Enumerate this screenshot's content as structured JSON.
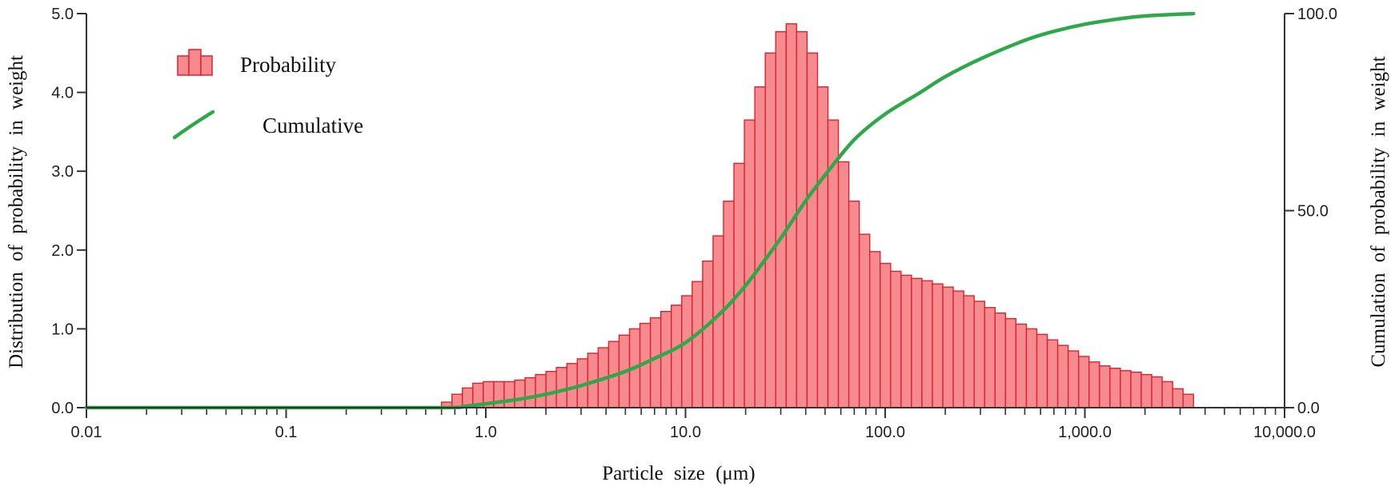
{
  "chart_data": {
    "type": "bar+line",
    "title": "",
    "xlabel": "Particle size (μm)",
    "ylabel_left": "Distribution of probability in weight",
    "ylabel_right": "Cumulation of probability in weight",
    "x_scale": "log10",
    "xlim": [
      0.01,
      10000
    ],
    "ylim_left": [
      0,
      5
    ],
    "ylim_right": [
      0,
      100
    ],
    "x_ticks": [
      0.01,
      0.1,
      1,
      10,
      100,
      1000,
      10000
    ],
    "x_tick_labels": [
      "0.01",
      "0.1",
      "1.0",
      "10.0",
      "100.0",
      "1,000.0",
      "10,000.0"
    ],
    "y_left_ticks": [
      0,
      1,
      2,
      3,
      4,
      5
    ],
    "y_left_tick_labels": [
      "0.0",
      "1.0",
      "2.0",
      "3.0",
      "4.0",
      "5.0"
    ],
    "y_right_ticks": [
      0,
      50,
      100
    ],
    "y_right_tick_labels": [
      "0.0",
      "50.0",
      "100.0"
    ],
    "legend": [
      {
        "name": "Probability",
        "kind": "bar"
      },
      {
        "name": "Cumulative",
        "kind": "line"
      }
    ],
    "legend_position": "top-left",
    "colors": {
      "bar_fill": "#f58b8e",
      "bar_edge": "#e2202c",
      "line": "#2ea84a",
      "axis": "#333333"
    },
    "series": [
      {
        "name": "Probability",
        "type": "bar",
        "axis": "left",
        "x_start": 0.6,
        "x_end": 3500,
        "values": [
          0.07,
          0.17,
          0.25,
          0.31,
          0.33,
          0.33,
          0.33,
          0.35,
          0.38,
          0.42,
          0.46,
          0.51,
          0.56,
          0.62,
          0.69,
          0.76,
          0.84,
          0.92,
          1.0,
          1.07,
          1.14,
          1.22,
          1.3,
          1.42,
          1.6,
          1.86,
          2.18,
          2.62,
          3.1,
          3.65,
          4.07,
          4.5,
          4.77,
          4.87,
          4.77,
          4.5,
          4.07,
          3.65,
          3.12,
          2.62,
          2.2,
          1.98,
          1.83,
          1.73,
          1.68,
          1.64,
          1.61,
          1.57,
          1.53,
          1.48,
          1.42,
          1.35,
          1.27,
          1.2,
          1.13,
          1.06,
          1.0,
          0.93,
          0.86,
          0.79,
          0.72,
          0.65,
          0.58,
          0.53,
          0.5,
          0.47,
          0.45,
          0.42,
          0.39,
          0.33,
          0.24,
          0.17
        ]
      },
      {
        "name": "Cumulative",
        "type": "line",
        "axis": "right",
        "x": [
          0.01,
          0.1,
          0.6,
          0.8,
          1,
          1.5,
          2,
          3,
          5,
          7,
          10,
          15,
          20,
          25,
          30,
          40,
          50,
          70,
          100,
          150,
          200,
          300,
          500,
          700,
          1000,
          1500,
          2000,
          3500
        ],
        "y": [
          0,
          0,
          0,
          0.4,
          1,
          2.2,
          3.4,
          5.6,
          9.2,
          12.5,
          16.5,
          24,
          31,
          37.5,
          43,
          52.5,
          59,
          68,
          74.5,
          80,
          84,
          88.5,
          93.2,
          95.5,
          97.3,
          98.7,
          99.4,
          100
        ]
      }
    ]
  }
}
